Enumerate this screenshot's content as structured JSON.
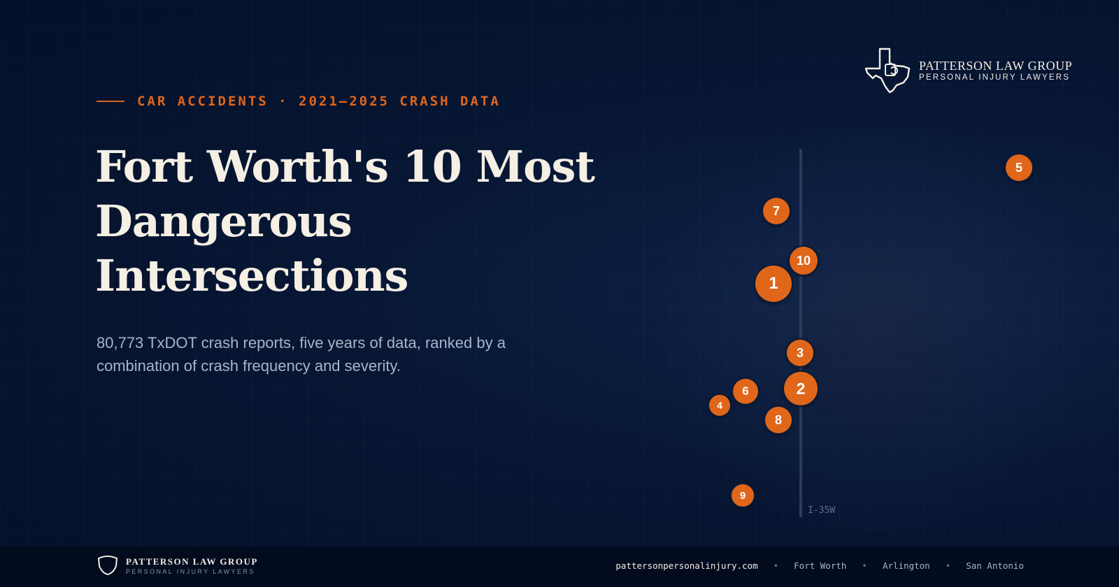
{
  "brand": {
    "name": "PATTERSON LAW GROUP",
    "tagline": "PERSONAL INJURY LAWYERS"
  },
  "eyebrow": "CAR ACCIDENTS · 2021–2025 CRASH DATA",
  "headline": "Fort Worth's 10 Most Dangerous Intersections",
  "subtitle": "80,773 TxDOT crash reports, five years of data, ranked by a combination of crash frequency and severity.",
  "map": {
    "road_label": "I-35W",
    "pin_color": "#e0661a",
    "pins": [
      {
        "rank": "1",
        "label": "1"
      },
      {
        "rank": "2",
        "label": "2"
      },
      {
        "rank": "3",
        "label": "3"
      },
      {
        "rank": "4",
        "label": "4"
      },
      {
        "rank": "5",
        "label": "5"
      },
      {
        "rank": "6",
        "label": "6"
      },
      {
        "rank": "7",
        "label": "7"
      },
      {
        "rank": "8",
        "label": "8"
      },
      {
        "rank": "9",
        "label": "9"
      },
      {
        "rank": "10",
        "label": "10"
      }
    ]
  },
  "footer": {
    "website": "pattersonpersonalinjury.com",
    "locations": [
      "Fort Worth",
      "Arlington",
      "San Antonio"
    ]
  },
  "icons": {
    "top_logo": "texas-state-icon",
    "bottom_logo": "shield-icon"
  },
  "colors": {
    "accent": "#e0661a",
    "background": "#071633",
    "headline": "#f5efe4"
  }
}
